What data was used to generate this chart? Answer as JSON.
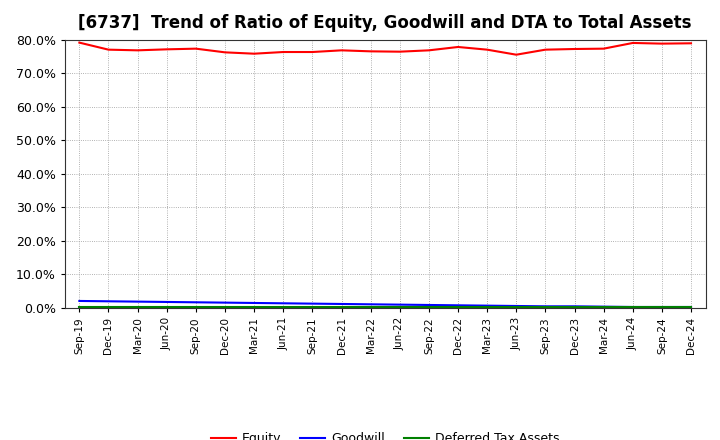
{
  "title": "[6737]  Trend of Ratio of Equity, Goodwill and DTA to Total Assets",
  "x_labels": [
    "Sep-19",
    "Dec-19",
    "Mar-20",
    "Jun-20",
    "Sep-20",
    "Dec-20",
    "Mar-21",
    "Jun-21",
    "Sep-21",
    "Dec-21",
    "Mar-22",
    "Jun-22",
    "Sep-22",
    "Dec-22",
    "Mar-23",
    "Jun-23",
    "Sep-23",
    "Dec-23",
    "Mar-24",
    "Jun-24",
    "Sep-24",
    "Dec-24"
  ],
  "equity": [
    0.791,
    0.77,
    0.768,
    0.771,
    0.773,
    0.762,
    0.758,
    0.763,
    0.763,
    0.768,
    0.765,
    0.764,
    0.768,
    0.778,
    0.77,
    0.755,
    0.77,
    0.772,
    0.773,
    0.79,
    0.788,
    0.789
  ],
  "goodwill": [
    0.021,
    0.02,
    0.019,
    0.018,
    0.017,
    0.016,
    0.015,
    0.014,
    0.013,
    0.012,
    0.011,
    0.01,
    0.009,
    0.008,
    0.007,
    0.006,
    0.005,
    0.005,
    0.004,
    0.003,
    0.003,
    0.003
  ],
  "dta": [
    0.003,
    0.003,
    0.003,
    0.003,
    0.003,
    0.003,
    0.003,
    0.003,
    0.003,
    0.003,
    0.003,
    0.003,
    0.003,
    0.003,
    0.003,
    0.003,
    0.003,
    0.003,
    0.003,
    0.003,
    0.003,
    0.003
  ],
  "equity_color": "#FF0000",
  "goodwill_color": "#0000FF",
  "dta_color": "#008000",
  "ylim": [
    0.0,
    0.8
  ],
  "yticks": [
    0.0,
    0.1,
    0.2,
    0.3,
    0.4,
    0.5,
    0.6,
    0.7,
    0.8
  ],
  "legend_labels": [
    "Equity",
    "Goodwill",
    "Deferred Tax Assets"
  ],
  "background_color": "#FFFFFF",
  "grid_color": "#999999",
  "title_fontsize": 12,
  "line_width": 1.5
}
